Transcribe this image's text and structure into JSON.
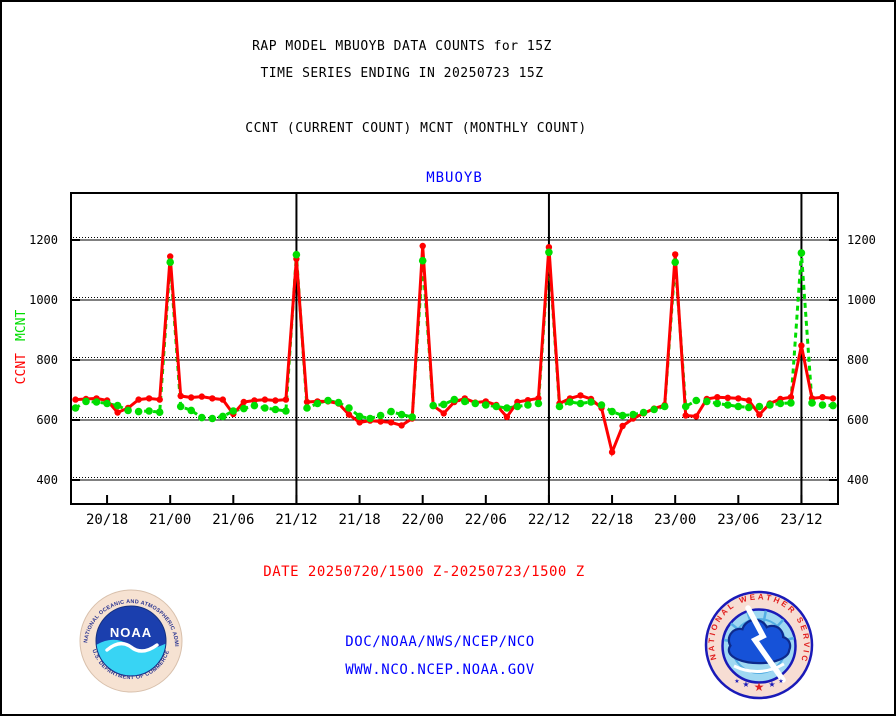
{
  "header": {
    "title_line1": "RAP MODEL MBUOYB DATA COUNTS for 15Z",
    "title_line2": "TIME SERIES ENDING IN 20250723 15Z",
    "legend_line": "CCNT (CURRENT COUNT) MCNT (MONTHLY COUNT)"
  },
  "chart_data": {
    "type": "line",
    "title": "MBUOYB",
    "title_color": "#0000ff",
    "xlabel": "",
    "ylabel_ccnt": "CCNT",
    "ylabel_mcnt": "MCNT",
    "grid": "horizontal dotted+solid lines at each y tick; solid vertical lines at 12Z day boundaries",
    "legend_position": "left axis, rotated",
    "ylim": [
      320,
      1355
    ],
    "yticks": [
      400,
      600,
      800,
      1000,
      1200
    ],
    "xticks": [
      "20/18",
      "21/00",
      "21/06",
      "21/12",
      "21/18",
      "22/00",
      "22/06",
      "22/12",
      "22/18",
      "23/00",
      "23/06",
      "23/12"
    ],
    "vlines": [
      "21/12",
      "22/12",
      "23/12"
    ],
    "x": [
      "20/15",
      "20/16",
      "20/17",
      "20/18",
      "20/19",
      "20/20",
      "20/21",
      "20/22",
      "20/23",
      "21/00",
      "21/01",
      "21/02",
      "21/03",
      "21/04",
      "21/05",
      "21/06",
      "21/07",
      "21/08",
      "21/09",
      "21/10",
      "21/11",
      "21/12",
      "21/13",
      "21/14",
      "21/15",
      "21/16",
      "21/17",
      "21/18",
      "21/19",
      "21/20",
      "21/21",
      "21/22",
      "21/23",
      "22/00",
      "22/01",
      "22/02",
      "22/03",
      "22/04",
      "22/05",
      "22/06",
      "22/07",
      "22/08",
      "22/09",
      "22/10",
      "22/11",
      "22/12",
      "22/13",
      "22/14",
      "22/15",
      "22/16",
      "22/17",
      "22/18",
      "22/19",
      "22/20",
      "22/21",
      "22/22",
      "22/23",
      "23/00",
      "23/01",
      "23/02",
      "23/03",
      "23/04",
      "23/05",
      "23/06",
      "23/07",
      "23/08",
      "23/09",
      "23/10",
      "23/11",
      "23/12",
      "23/13",
      "23/14",
      "23/15"
    ],
    "series": [
      {
        "name": "CCNT",
        "color": "#ff0000",
        "style": "solid line with dots",
        "values": [
          668,
          670,
          672,
          665,
          625,
          640,
          668,
          672,
          668,
          1145,
          680,
          675,
          678,
          672,
          668,
          620,
          660,
          665,
          668,
          665,
          668,
          1137,
          660,
          662,
          662,
          655,
          618,
          592,
          598,
          595,
          592,
          582,
          605,
          1180,
          648,
          622,
          660,
          672,
          658,
          662,
          650,
          610,
          660,
          666,
          672,
          1176,
          655,
          672,
          682,
          670,
          640,
          493,
          580,
          605,
          622,
          638,
          650,
          1152,
          615,
          612,
          670,
          676,
          674,
          672,
          665,
          618,
          655,
          670,
          676,
          848,
          672,
          676,
          672
        ]
      },
      {
        "name": "MCNT",
        "color": "#00dd00",
        "style": "dashed line with round dots",
        "values": [
          640,
          662,
          660,
          655,
          648,
          632,
          628,
          630,
          626,
          1126,
          645,
          632,
          608,
          605,
          612,
          630,
          638,
          648,
          640,
          635,
          630,
          1151,
          640,
          655,
          665,
          658,
          640,
          612,
          605,
          615,
          628,
          618,
          610,
          1131,
          648,
          652,
          668,
          662,
          655,
          650,
          645,
          640,
          645,
          650,
          655,
          1159,
          645,
          660,
          655,
          660,
          650,
          628,
          615,
          618,
          625,
          635,
          645,
          1126,
          645,
          665,
          662,
          655,
          650,
          645,
          642,
          645,
          650,
          655,
          657,
          1157,
          657,
          650,
          648
        ]
      }
    ]
  },
  "footer": {
    "date_range": "DATE 20250720/1500 Z-20250723/1500 Z",
    "org_line": "DOC/NOAA/NWS/NCEP/NCO",
    "url_line": "WWW.NCO.NCEP.NOAA.GOV"
  },
  "logos": {
    "noaa": {
      "center_text": "NOAA",
      "ring_top": "NATIONAL OCEANIC AND ATMOSPHERIC ADMINISTRATION",
      "ring_bottom": "U.S. DEPARTMENT OF COMMERCE"
    },
    "nws": {
      "ring_text": "NATIONAL  WEATHER  SERVICE"
    }
  },
  "colors": {
    "ccnt_red": "#ff0000",
    "mcnt_green": "#00dd00",
    "link_blue": "#0000ff",
    "date_red": "#ff0000"
  }
}
